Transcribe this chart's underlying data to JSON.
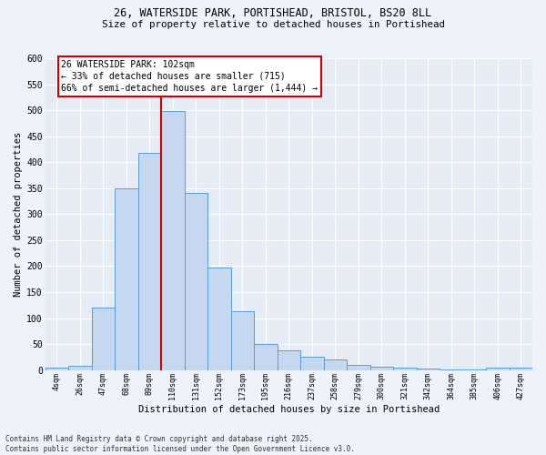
{
  "title_line1": "26, WATERSIDE PARK, PORTISHEAD, BRISTOL, BS20 8LL",
  "title_line2": "Size of property relative to detached houses in Portishead",
  "xlabel": "Distribution of detached houses by size in Portishead",
  "ylabel": "Number of detached properties",
  "categories": [
    "4sqm",
    "26sqm",
    "47sqm",
    "68sqm",
    "89sqm",
    "110sqm",
    "131sqm",
    "152sqm",
    "173sqm",
    "195sqm",
    "216sqm",
    "237sqm",
    "258sqm",
    "279sqm",
    "300sqm",
    "321sqm",
    "342sqm",
    "364sqm",
    "385sqm",
    "406sqm",
    "427sqm"
  ],
  "bar_heights": [
    5,
    8,
    120,
    350,
    418,
    498,
    340,
    197,
    113,
    50,
    38,
    25,
    20,
    10,
    6,
    5,
    3,
    2,
    1,
    5,
    4
  ],
  "bar_color": "#c5d8f0",
  "bar_edge_color": "#5b9bd5",
  "property_label": "26 WATERSIDE PARK: 102sqm",
  "annotation_line2": "← 33% of detached houses are smaller (715)",
  "annotation_line3": "66% of semi-detached houses are larger (1,444) →",
  "vline_color": "#cc0000",
  "annotation_edge_color": "#cc0000",
  "ylim_max": 600,
  "yticks": [
    0,
    50,
    100,
    150,
    200,
    250,
    300,
    350,
    400,
    450,
    500,
    550,
    600
  ],
  "footer_line1": "Contains HM Land Registry data © Crown copyright and database right 2025.",
  "footer_line2": "Contains public sector information licensed under the Open Government Licence v3.0.",
  "bg_color": "#eef2f9",
  "plot_bg_color": "#e6ecf6"
}
